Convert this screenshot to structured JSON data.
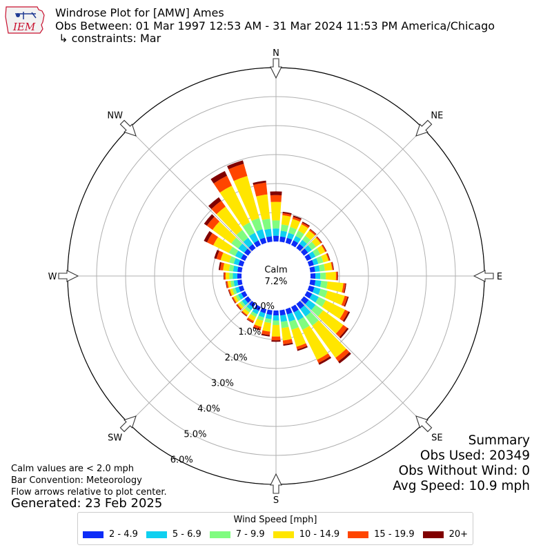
{
  "header": {
    "logo_text": "IEM",
    "title_line1": "Windrose Plot for [AMW] Ames",
    "title_line2": "Obs Between: 01 Mar 1997 12:53 AM - 31 Mar 2024 11:53 PM America/Chicago",
    "title_line3": " ↳ constraints: Mar"
  },
  "notes": {
    "line1": "Calm values are < 2.0 mph",
    "line2": "Bar Convention: Meteorology",
    "line3": "Flow arrows relative to plot center.",
    "generated": "Generated: 23 Feb 2025"
  },
  "summary": {
    "title": "Summary",
    "obs_used": "Obs Used: 20349",
    "obs_without_wind": "Obs Without Wind: 0",
    "avg_speed": "Avg Speed: 10.9 mph"
  },
  "chart_data": {
    "type": "windrose",
    "title": "Windrose Plot for [AMW] Ames",
    "calm_label": "Calm",
    "calm_value": "7.2%",
    "compass_labels": [
      "N",
      "NE",
      "E",
      "SE",
      "S",
      "SW",
      "W",
      "NW"
    ],
    "radial_ticks": [
      "0.0%",
      "1.0%",
      "2.0%",
      "3.0%",
      "4.0%",
      "5.0%",
      "6.0%"
    ],
    "radial_max": 6.0,
    "legend_title": "Wind Speed [mph]",
    "speed_bins": [
      {
        "label": "2 - 4.9",
        "color": "#0d2cf7"
      },
      {
        "label": "5 - 6.9",
        "color": "#0fd0f0"
      },
      {
        "label": "7 - 9.9",
        "color": "#80fc80"
      },
      {
        "label": "10 - 14.9",
        "color": "#ffe600"
      },
      {
        "label": "15 - 19.9",
        "color": "#ff4500"
      },
      {
        "label": "20+",
        "color": "#800000"
      }
    ],
    "directions_deg": [
      0,
      10,
      20,
      30,
      40,
      50,
      60,
      70,
      80,
      90,
      100,
      110,
      120,
      130,
      140,
      150,
      160,
      170,
      180,
      190,
      200,
      210,
      220,
      230,
      240,
      250,
      260,
      270,
      280,
      290,
      300,
      310,
      320,
      330,
      340,
      350
    ],
    "cumulative_percent": [
      [
        0.2,
        0.45,
        0.73,
        1.37,
        1.6,
        1.73
      ],
      [
        0.18,
        0.38,
        0.6,
        0.92,
        0.99,
        1.04
      ],
      [
        0.18,
        0.36,
        0.57,
        0.86,
        0.93,
        0.98
      ],
      [
        0.18,
        0.35,
        0.55,
        0.8,
        0.86,
        0.9
      ],
      [
        0.18,
        0.35,
        0.53,
        0.75,
        0.8,
        0.82
      ],
      [
        0.18,
        0.34,
        0.52,
        0.72,
        0.76,
        0.78
      ],
      [
        0.17,
        0.33,
        0.51,
        0.7,
        0.74,
        0.76
      ],
      [
        0.17,
        0.33,
        0.51,
        0.7,
        0.74,
        0.76
      ],
      [
        0.17,
        0.33,
        0.51,
        0.76,
        0.8,
        0.82
      ],
      [
        0.17,
        0.34,
        0.53,
        0.88,
        0.93,
        0.95
      ],
      [
        0.18,
        0.38,
        0.6,
        1.15,
        1.22,
        1.25
      ],
      [
        0.19,
        0.41,
        0.66,
        1.28,
        1.38,
        1.42
      ],
      [
        0.2,
        0.45,
        0.72,
        1.46,
        1.59,
        1.65
      ],
      [
        0.21,
        0.5,
        0.82,
        1.68,
        1.85,
        1.91
      ],
      [
        0.22,
        0.54,
        0.93,
        2.3,
        2.46,
        2.54
      ],
      [
        0.21,
        0.52,
        0.88,
        2.03,
        2.15,
        2.22
      ],
      [
        0.19,
        0.45,
        0.74,
        1.35,
        1.45,
        1.5
      ],
      [
        0.18,
        0.4,
        0.62,
        1.05,
        1.18,
        1.23
      ],
      [
        0.17,
        0.35,
        0.5,
        0.9,
        1.03,
        1.08
      ],
      [
        0.16,
        0.31,
        0.44,
        0.74,
        0.86,
        0.91
      ],
      [
        0.15,
        0.3,
        0.42,
        0.64,
        0.73,
        0.77
      ],
      [
        0.15,
        0.28,
        0.39,
        0.54,
        0.6,
        0.62
      ],
      [
        0.15,
        0.27,
        0.37,
        0.48,
        0.52,
        0.54
      ],
      [
        0.15,
        0.27,
        0.36,
        0.45,
        0.49,
        0.51
      ],
      [
        0.15,
        0.27,
        0.36,
        0.45,
        0.49,
        0.51
      ],
      [
        0.15,
        0.28,
        0.38,
        0.47,
        0.51,
        0.53
      ],
      [
        0.15,
        0.28,
        0.39,
        0.49,
        0.54,
        0.56
      ],
      [
        0.15,
        0.3,
        0.42,
        0.55,
        0.6,
        0.62
      ],
      [
        0.15,
        0.3,
        0.44,
        0.65,
        0.75,
        0.8
      ],
      [
        0.16,
        0.33,
        0.49,
        0.8,
        0.95,
        1.03
      ],
      [
        0.16,
        0.38,
        0.62,
        1.22,
        1.46,
        1.58
      ],
      [
        0.17,
        0.42,
        0.72,
        1.52,
        1.76,
        1.88
      ],
      [
        0.17,
        0.44,
        0.78,
        1.77,
        2.02,
        2.17
      ],
      [
        0.18,
        0.47,
        0.87,
        2.28,
        2.66,
        2.84
      ],
      [
        0.19,
        0.49,
        0.89,
        2.4,
        2.84,
        2.96
      ],
      [
        0.19,
        0.45,
        0.8,
        1.64,
        2.05,
        2.12
      ]
    ]
  }
}
